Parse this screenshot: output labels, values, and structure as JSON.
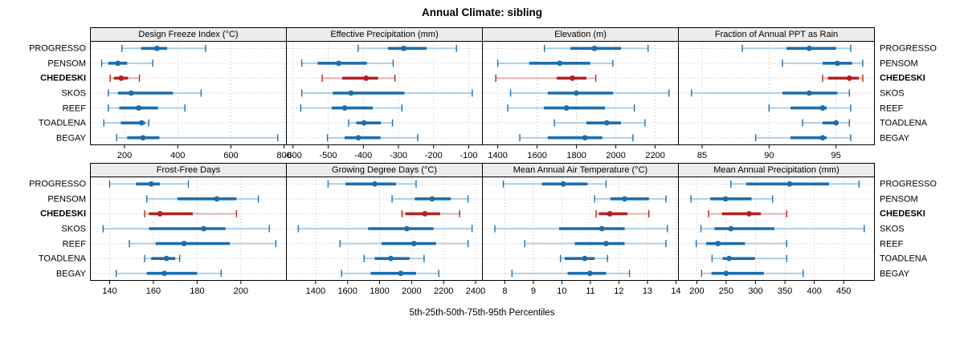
{
  "title": "Annual Climate: sibling",
  "xlabel": "5th-25th-50th-75th-95th Percentiles",
  "sites": [
    "PROGRESSO",
    "PENSOM",
    "CHEDESKI",
    "SKOS",
    "REEF",
    "TOADLENA",
    "BEGAY"
  ],
  "highlighted_site": "CHEDESKI",
  "colors": {
    "normal_dark": "#1c6eae",
    "normal_light": "#a3c9e2",
    "highlight_dark": "#b22222",
    "highlight_light": "#dfa09e",
    "grid": "#bfbfbf",
    "panel_border": "#000000",
    "header_bg": "#ececec"
  },
  "chart_data": {
    "type": "interval-dotplot",
    "note": "Each row shows 5th-25th-50th-75th-95th percentile intervals; dot = median, thick bar = 25th-75th, thin capped line = 5th-95th.",
    "percentiles": [
      5,
      25,
      50,
      75,
      95
    ],
    "legend_position": "none",
    "grid": "dotted",
    "panels": [
      {
        "row": 0,
        "col": 0,
        "label": "Design Freeze Index (°C)",
        "xlim": [
          70,
          810
        ],
        "ticks": [
          200,
          400,
          600,
          800
        ],
        "values": {
          "PROGRESSO": [
            190,
            262,
            322,
            360,
            505
          ],
          "PENSOM": [
            114,
            139,
            175,
            210,
            306
          ],
          "CHEDESKI": [
            146,
            160,
            187,
            213,
            256
          ],
          "SKOS": [
            139,
            175,
            225,
            382,
            488
          ],
          "REEF": [
            139,
            180,
            253,
            326,
            427
          ],
          "TOADLENA": [
            122,
            186,
            264,
            277,
            291
          ],
          "BEGAY": [
            170,
            210,
            269,
            331,
            776
          ]
        }
      },
      {
        "row": 0,
        "col": 1,
        "label": "Effective Precipitation (mm)",
        "xlim": [
          -620,
          -60
        ],
        "ticks": [
          -600,
          -500,
          -400,
          -300,
          -200,
          -100
        ],
        "values": {
          "PROGRESSO": [
            -415,
            -330,
            -285,
            -220,
            -135
          ],
          "PENSOM": [
            -575,
            -530,
            -470,
            -390,
            -315
          ],
          "CHEDESKI": [
            -517,
            -460,
            -392,
            -358,
            -310
          ],
          "SKOS": [
            -575,
            -487,
            -435,
            -283,
            -90
          ],
          "REEF": [
            -578,
            -490,
            -453,
            -373,
            -290
          ],
          "TOADLENA": [
            -442,
            -420,
            -398,
            -350,
            -317
          ],
          "BEGAY": [
            -502,
            -453,
            -414,
            -351,
            -245
          ]
        }
      },
      {
        "row": 0,
        "col": 2,
        "label": "Elevation (m)",
        "xlim": [
          1320,
          2320
        ],
        "ticks": [
          1400,
          1600,
          1800,
          2000,
          2200
        ],
        "values": {
          "PROGRESSO": [
            1637,
            1769,
            1891,
            2026,
            2164
          ],
          "PENSOM": [
            1400,
            1560,
            1715,
            1870,
            1985
          ],
          "CHEDESKI": [
            1390,
            1700,
            1779,
            1850,
            1898
          ],
          "SKOS": [
            1465,
            1654,
            1799,
            1986,
            2270
          ],
          "REEF": [
            1451,
            1634,
            1749,
            1945,
            2094
          ],
          "TOADLENA": [
            1688,
            1850,
            1954,
            2026,
            2148
          ],
          "BEGAY": [
            1512,
            1654,
            1843,
            1931,
            2087
          ]
        }
      },
      {
        "row": 0,
        "col": 3,
        "label": "Fraction of Annual PPT as Rain",
        "xlim": [
          83.2,
          97.9
        ],
        "ticks": [
          85,
          90,
          95
        ],
        "values": {
          "PROGRESSO": [
            88.0,
            91.3,
            93.0,
            95.0,
            96.1
          ],
          "PENSOM": [
            91.0,
            94.0,
            95.1,
            96.2,
            97.0
          ],
          "CHEDESKI": [
            94.0,
            94.4,
            96.0,
            96.7,
            97.0
          ],
          "SKOS": [
            84.2,
            91.0,
            93.0,
            95.1,
            96.0
          ],
          "REEF": [
            90.0,
            91.6,
            94.0,
            94.3,
            96.1
          ],
          "TOADLENA": [
            92.5,
            94.0,
            95.0,
            95.2,
            96.0
          ],
          "BEGAY": [
            89.0,
            91.6,
            94.0,
            94.3,
            96.1
          ]
        }
      },
      {
        "row": 1,
        "col": 0,
        "label": "Frost-Free Days",
        "xlim": [
          131,
          221
        ],
        "ticks": [
          140,
          160,
          180,
          200
        ],
        "values": {
          "PROGRESSO": [
            140,
            152,
            159,
            163,
            176
          ],
          "PENSOM": [
            157,
            171,
            189,
            198,
            208
          ],
          "CHEDESKI": [
            156,
            158,
            163,
            178,
            198
          ],
          "SKOS": [
            137,
            158,
            183,
            193,
            213
          ],
          "REEF": [
            149,
            161,
            174,
            195,
            216
          ],
          "TOADLENA": [
            156,
            159,
            166,
            170,
            172
          ],
          "BEGAY": [
            143,
            157,
            165,
            180,
            191
          ]
        }
      },
      {
        "row": 1,
        "col": 1,
        "label": "Growing Degree Days (°C)",
        "xlim": [
          1215,
          2445
        ],
        "ticks": [
          1400,
          1600,
          1800,
          2000,
          2200,
          2400
        ],
        "values": {
          "PROGRESSO": [
            1478,
            1587,
            1770,
            1903,
            2028
          ],
          "PENSOM": [
            1878,
            2020,
            2128,
            2245,
            2353
          ],
          "CHEDESKI": [
            1940,
            1962,
            2083,
            2178,
            2300
          ],
          "SKOS": [
            1292,
            1728,
            1970,
            2137,
            2378
          ],
          "REEF": [
            1553,
            1812,
            2015,
            2153,
            2353
          ],
          "TOADLENA": [
            1703,
            1770,
            1870,
            1987,
            2078
          ],
          "BEGAY": [
            1562,
            1745,
            1932,
            2028,
            2170
          ]
        }
      },
      {
        "row": 1,
        "col": 2,
        "label": "Mean Annual Air Temperature (°C)",
        "xlim": [
          7.2,
          14.1
        ],
        "ticks": [
          8,
          9,
          10,
          11,
          12,
          13,
          14
        ],
        "values": {
          "PROGRESSO": [
            7.95,
            9.3,
            10.05,
            10.9,
            11.55
          ],
          "PENSOM": [
            11.15,
            11.7,
            12.2,
            13.05,
            13.65
          ],
          "CHEDESKI": [
            11.2,
            11.3,
            11.68,
            12.3,
            13.05
          ],
          "SKOS": [
            7.65,
            9.9,
            11.4,
            12.2,
            13.7
          ],
          "REEF": [
            8.7,
            10.45,
            11.55,
            12.2,
            13.65
          ],
          "TOADLENA": [
            9.95,
            10.1,
            10.8,
            11.15,
            11.6
          ],
          "BEGAY": [
            8.25,
            10.2,
            10.98,
            11.55,
            12.37
          ]
        }
      },
      {
        "row": 1,
        "col": 3,
        "label": "Mean Annual Precipitation (mm)",
        "xlim": [
          168,
          503
        ],
        "ticks": [
          200,
          250,
          300,
          350,
          400,
          450
        ],
        "values": {
          "PROGRESSO": [
            258,
            284,
            358,
            425,
            476
          ],
          "PENSOM": [
            190,
            223,
            249,
            293,
            329
          ],
          "CHEDESKI": [
            220,
            243,
            289,
            309,
            353
          ],
          "SKOS": [
            207,
            230,
            258,
            332,
            485
          ],
          "REEF": [
            199,
            216,
            236,
            282,
            353
          ],
          "TOADLENA": [
            226,
            244,
            255,
            299,
            353
          ],
          "BEGAY": [
            208,
            225,
            250,
            314,
            381
          ]
        }
      }
    ]
  }
}
